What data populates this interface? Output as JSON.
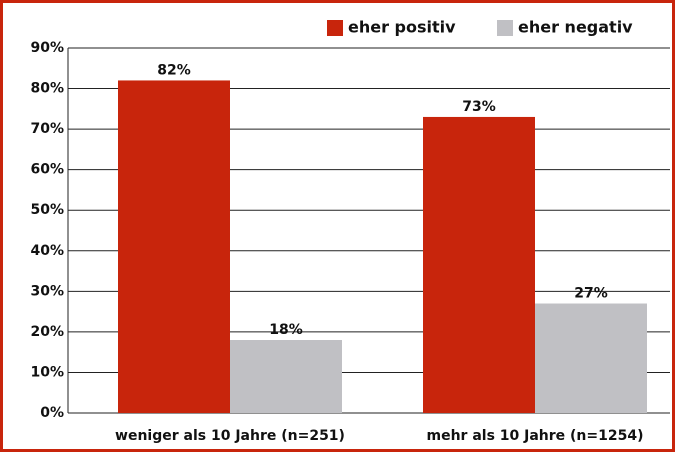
{
  "chart_data": {
    "type": "bar",
    "categories": [
      "weniger als 10 Jahre (n=251)",
      "mehr als 10 Jahre (n=1254)"
    ],
    "series": [
      {
        "name": "eher positiv",
        "color": "#c8250c",
        "values": [
          82,
          73
        ],
        "value_labels": [
          "82%",
          "73%"
        ]
      },
      {
        "name": "eher negativ",
        "color": "#c0c0c4",
        "values": [
          18,
          27
        ],
        "value_labels": [
          "18%",
          "27%"
        ]
      }
    ],
    "ylim": [
      0,
      90
    ],
    "yticks": [
      {
        "value": 0,
        "label": "0%"
      },
      {
        "value": 10,
        "label": "10%"
      },
      {
        "value": 20,
        "label": "20%"
      },
      {
        "value": 30,
        "label": "30%"
      },
      {
        "value": 40,
        "label": "40%"
      },
      {
        "value": 50,
        "label": "50%"
      },
      {
        "value": 60,
        "label": "60%"
      },
      {
        "value": 70,
        "label": "70%"
      },
      {
        "value": 80,
        "label": "80%"
      },
      {
        "value": 90,
        "label": "90%"
      }
    ],
    "grid": true,
    "legend": "top-right"
  }
}
